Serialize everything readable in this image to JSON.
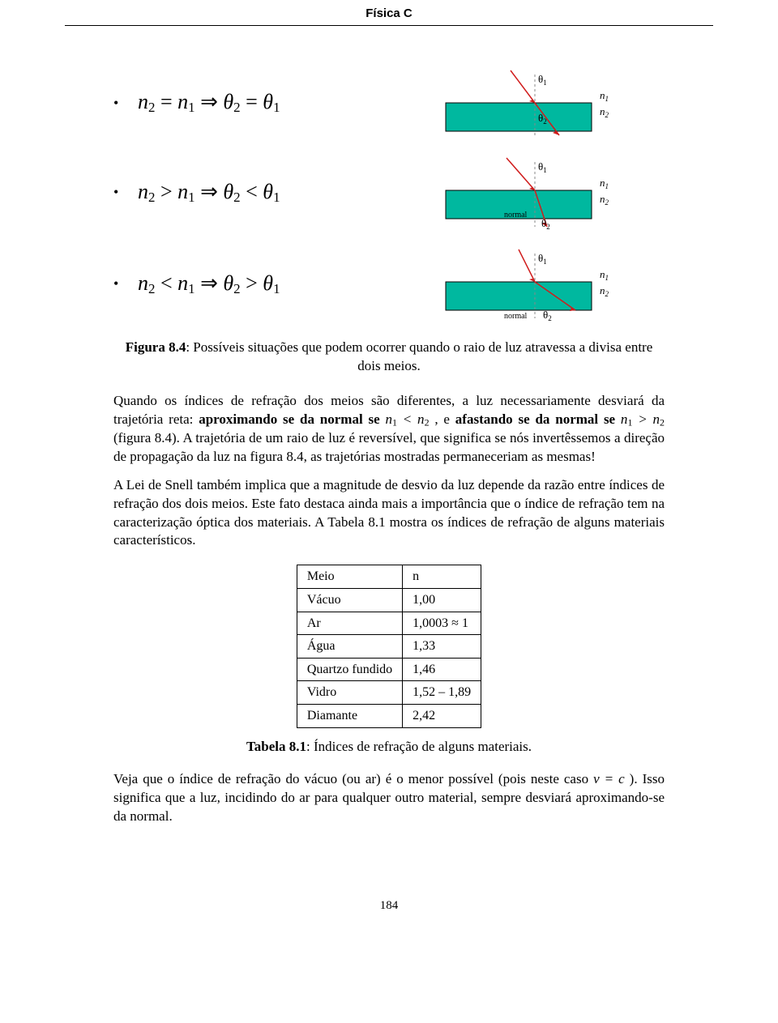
{
  "header": {
    "course_title": "Física C"
  },
  "cases": {
    "bullet": "•",
    "rows": [
      {
        "relation_html": "<i>n</i><span class='sub'>2</span> = <i>n</i><span class='sub'>1</span> ⇒ <i>θ</i><span class='sub'>2</span> = <i>θ</i><span class='sub'>1</span>"
      },
      {
        "relation_html": "<i>n</i><span class='sub'>2</span> &gt; <i>n</i><span class='sub'>1</span> ⇒ <i>θ</i><span class='sub'>2</span> &lt; <i>θ</i><span class='sub'>1</span>"
      },
      {
        "relation_html": "<i>n</i><span class='sub'>2</span> &lt; <i>n</i><span class='sub'>1</span> ⇒ <i>θ</i><span class='sub'>2</span> &gt; <i>θ</i><span class='sub'>1</span>"
      }
    ]
  },
  "diagrams": {
    "medium_fill": "#00b89f",
    "medium_stroke": "#000000",
    "ray_color": "#d01c1c",
    "normal_color": "#888888",
    "theta1": "θ",
    "theta2": "θ",
    "n1": "n",
    "n2": "n",
    "normal_label": "normal",
    "sub1": "1",
    "sub2": "2"
  },
  "figure_caption": {
    "label": "Figura 8.4",
    "text": ": Possíveis situações que podem ocorrer quando o raio de luz atravessa a divisa entre dois meios."
  },
  "para1": {
    "t1": "Quando os índices de refração dos meios são diferentes, a luz necessariamente desviará da trajetória reta: ",
    "bold1": "aproximando se da normal se",
    "m1": " n<span class='sub'>1</span> &lt; n<span class='sub'>2</span> ",
    "t2": ", e ",
    "bold2": "afastando se da normal se",
    "m2": " n<span class='sub'>1</span> &gt; n<span class='sub'>2</span> ",
    "t3": "(figura 8.4). A trajetória de um raio de luz é reversível, que significa se nós invertêssemos a direção de propagação da luz na figura 8.4, as trajetórias mostradas permaneceriam as mesmas!"
  },
  "para2": "A Lei de Snell também implica que a magnitude de desvio da luz depende da razão entre índices de refração dos dois meios. Este fato destaca ainda mais a importância que o índice de refração tem na caracterização óptica dos materiais. A Tabela 8.1 mostra os índices de refração de alguns materiais característicos.",
  "table": {
    "header_medium": "Meio",
    "header_n": "n",
    "rows": [
      {
        "medium": "Vácuo",
        "n": "1,00"
      },
      {
        "medium": "Ar",
        "n": "1,0003 ≈ 1"
      },
      {
        "medium": "Água",
        "n": "1,33"
      },
      {
        "medium": "Quartzo fundido",
        "n": "1,46"
      },
      {
        "medium": "Vidro",
        "n": "1,52 – 1,89"
      },
      {
        "medium": "Diamante",
        "n": "2,42"
      }
    ]
  },
  "table_caption": {
    "label": "Tabela 8.1",
    "text": ": Índices de refração de alguns materiais."
  },
  "para3": {
    "t1": "Veja que o índice de refração do vácuo (ou ar) é o menor possível (pois neste caso ",
    "eq": "v = c",
    "t2": " ). Isso significa que a luz, incidindo do ar para qualquer outro material, sempre desviará aproximando-se da normal."
  },
  "page_number": "184"
}
